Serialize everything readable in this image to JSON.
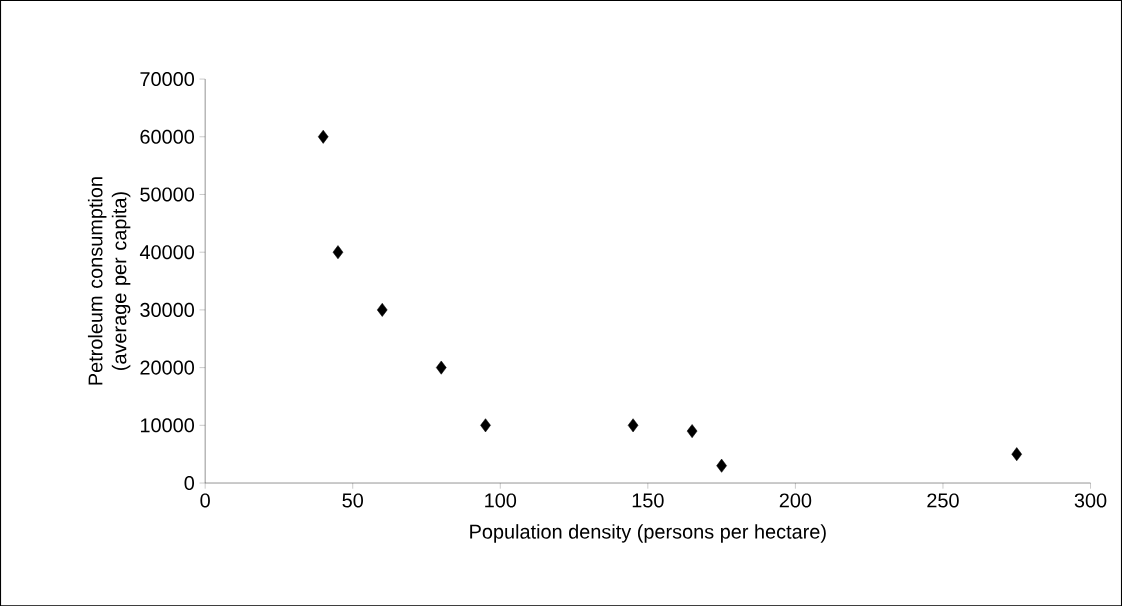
{
  "chart_data": {
    "type": "scatter",
    "xlabel": "Population density (persons per hectare)",
    "ylabel": "Petroleum consumption (average per capita)",
    "x": [
      40,
      45,
      60,
      80,
      95,
      145,
      165,
      175,
      275
    ],
    "values": [
      60000,
      40000,
      30000,
      20000,
      10000,
      10000,
      9000,
      3000,
      5000
    ],
    "color": "#000000",
    "marker": "diamond",
    "xlim": [
      0,
      300
    ],
    "xticks": [
      0,
      50,
      100,
      150,
      200,
      250,
      300
    ],
    "ylim": [
      0,
      70000
    ],
    "yticks": [
      0,
      10000,
      20000,
      30000,
      40000,
      50000,
      60000,
      70000
    ],
    "grid": false
  }
}
